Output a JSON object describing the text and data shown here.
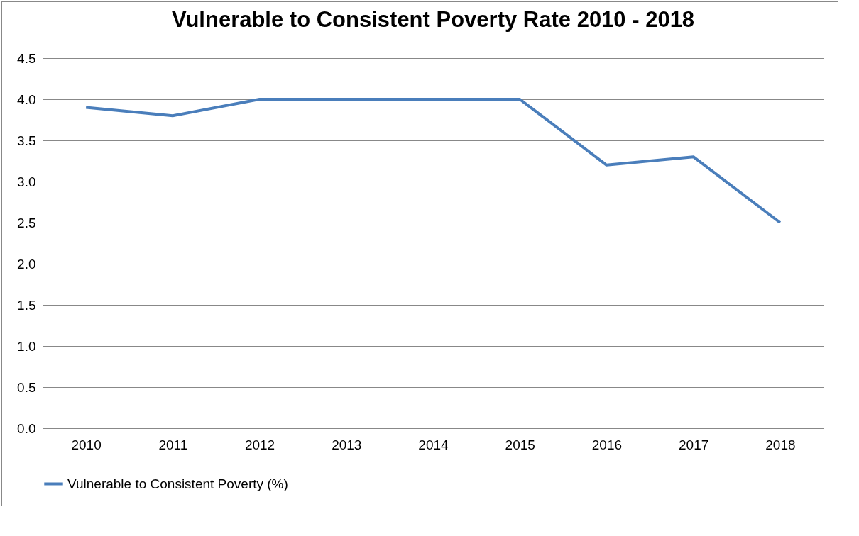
{
  "chart_data": {
    "type": "line",
    "title": "Vulnerable to Consistent Poverty Rate 2010 - 2018",
    "categories": [
      "2010",
      "2011",
      "2012",
      "2013",
      "2014",
      "2015",
      "2016",
      "2017",
      "2018"
    ],
    "series": [
      {
        "name": "Vulnerable to Consistent Poverty (%)",
        "color": "#4a7ebb",
        "values": [
          3.9,
          3.8,
          4.0,
          4.0,
          4.0,
          4.0,
          3.2,
          3.3,
          2.5
        ]
      }
    ],
    "ylim": [
      0,
      4.5
    ],
    "yticks": [
      {
        "value": 0,
        "label": "0.0"
      },
      {
        "value": 0.5,
        "label": "0.5"
      },
      {
        "value": 1,
        "label": "1.0"
      },
      {
        "value": 1.5,
        "label": "1.5"
      },
      {
        "value": 2,
        "label": "2.0"
      },
      {
        "value": 2.5,
        "label": "2.5"
      },
      {
        "value": 3,
        "label": "3.0"
      },
      {
        "value": 3.5,
        "label": "3.5"
      },
      {
        "value": 4,
        "label": "4.0"
      },
      {
        "value": 4.5,
        "label": "4.5"
      }
    ],
    "grid": "y",
    "legend": "bottom",
    "marker": "none",
    "line_style": "solid"
  }
}
